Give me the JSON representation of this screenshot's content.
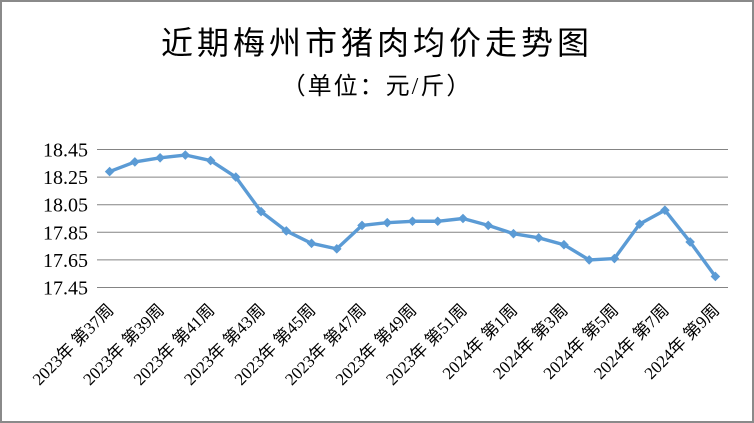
{
  "header": {
    "title": "近期梅州市猪肉均价走势图",
    "subtitle": "（单位：元/斤）"
  },
  "chart_data": {
    "type": "line",
    "title": "近期梅州市猪肉均价走势图",
    "subtitle": "（单位：元/斤）",
    "ylim": [
      17.45,
      18.45
    ],
    "ytick_labels": [
      "18.45",
      "18.25",
      "18.05",
      "17.85",
      "17.65",
      "17.45"
    ],
    "x_tick_labels": [
      "2023年 第37周",
      "2023年 第39周",
      "2023年 第41周",
      "2023年 第43周",
      "2023年 第45周",
      "2023年 第47周",
      "2023年 第49周",
      "2023年 第51周",
      "2024年 第1周",
      "2024年 第3周",
      "2024年 第5周",
      "2024年 第7周",
      "2024年 第9周"
    ],
    "label_every": 2,
    "values": [
      18.29,
      18.36,
      18.39,
      18.41,
      18.37,
      18.25,
      18.0,
      17.86,
      17.77,
      17.73,
      17.9,
      17.92,
      17.93,
      17.93,
      17.95,
      17.9,
      17.84,
      17.81,
      17.76,
      17.65,
      17.66,
      17.91,
      18.01,
      17.78,
      17.53
    ],
    "grid": "horizontal-only",
    "legend": "none",
    "marker": "diamond",
    "colors": {
      "line": "#5B9BD5",
      "marker": "#5B9BD5",
      "gridline": "#848484",
      "text": "#000000",
      "background": "#FFFFFF",
      "frame_border": "#8A8A8A"
    }
  }
}
